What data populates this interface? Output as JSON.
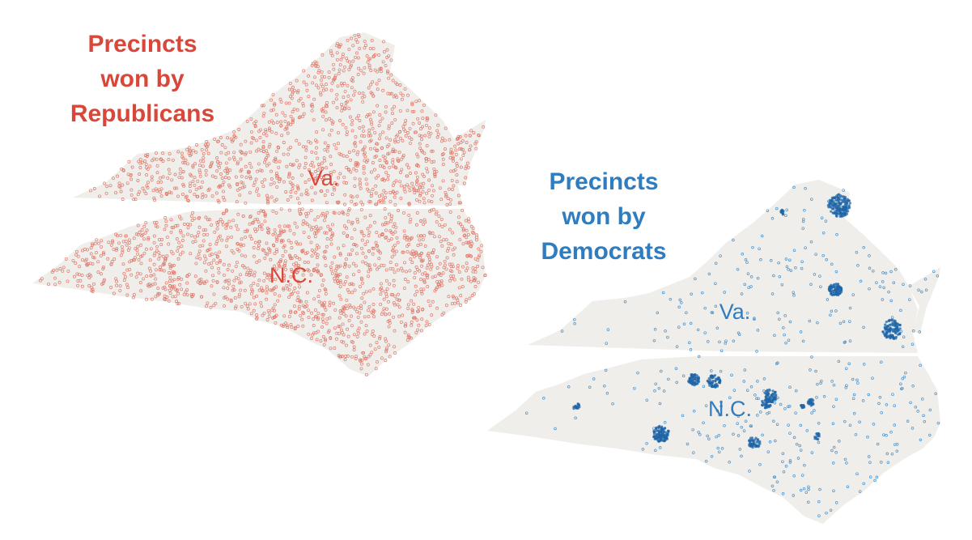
{
  "maps": [
    {
      "title": [
        "Precincts",
        "won by",
        "Republicans"
      ],
      "labels": [
        "Va.",
        "N.C."
      ]
    },
    {
      "title": [
        "Precincts",
        "won by",
        "Democrats"
      ],
      "labels": [
        "Va.",
        "N.C."
      ]
    }
  ]
}
